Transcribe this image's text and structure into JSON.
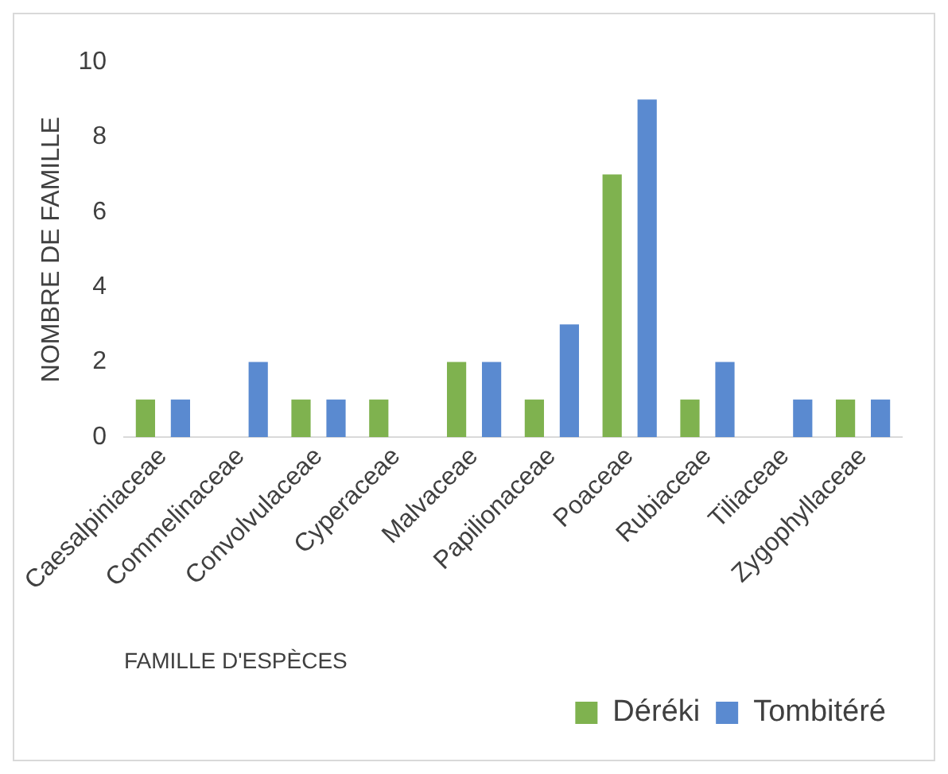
{
  "chart_data": {
    "type": "bar",
    "ylabel": "NOMBRE DE FAMILLE",
    "xlabel": "FAMILLE D'ESPÈCES",
    "categories": [
      "Caesalpiniaceae",
      "Commelinaceae",
      "Convolvulaceae",
      "Cyperaceae",
      "Malvaceae",
      "Papilionaceae",
      "Poaceae",
      "Rubiaceae",
      "Tiliaceae",
      "Zygophyllaceae"
    ],
    "series": [
      {
        "name": "Déréki",
        "color": "#7fb24f",
        "values": [
          1,
          0,
          1,
          1,
          2,
          1,
          7,
          1,
          0,
          1
        ]
      },
      {
        "name": "Tombitéré",
        "color": "#5a8ad0",
        "values": [
          1,
          2,
          1,
          0,
          2,
          3,
          9,
          2,
          1,
          1
        ]
      }
    ],
    "ylim": [
      0,
      10
    ],
    "yticks": [
      0,
      2,
      4,
      6,
      8,
      10
    ],
    "grid": false,
    "legend": "bottom right"
  }
}
